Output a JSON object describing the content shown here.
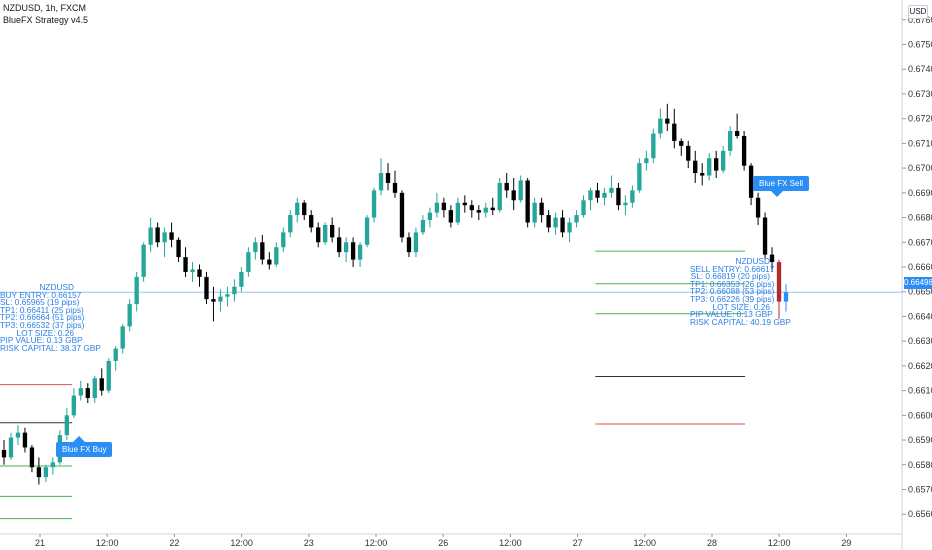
{
  "header": {
    "symbol_line": "NZDUSD, 1h, FXCM",
    "indicator_line": "BlueFX Strategy v4.5"
  },
  "currency_button": "USD",
  "current_price": "0.66498",
  "buy_signal": {
    "tag_label": "Blue FX Buy",
    "lines": [
      "NZDUSD",
      "BUY ENTRY: 0.66157",
      "SL: 0.65965 (19 pips)",
      "TP1: 0.66411 (25 pips)",
      "TP2: 0.66664 (51 pips)",
      "TP3: 0.66532 (37 pips)",
      "LOT SIZE: 0.26",
      "PIP VALUE: 0.13 GBP",
      "RISK CAPITAL: 38.37 GBP"
    ]
  },
  "sell_signal": {
    "tag_label": "Blue FX Sell",
    "lines": [
      "NZDUSD",
      "SELL ENTRY: 0.66617",
      "SL: 0.66819 (20 pips)",
      "TP1: 0.66353 (26 pips)",
      "TP2: 0.66088 (53 pips)",
      "TP3: 0.66226 (39 pips)",
      "LOT SIZE: 0.26",
      "PIP VALUE: 0.13 GBP",
      "RISK CAPITAL: 40.19 GBP"
    ]
  },
  "colors": {
    "up": "#26a69a",
    "down": "#000000",
    "last_bar": "#b2292e",
    "accent": "#2b8ef5",
    "tp_line": "#4caf50",
    "sl_line": "#e84b4b",
    "entry_line": "#333333"
  },
  "chart_data": {
    "type": "candlestick",
    "symbol": "NZDUSD",
    "timeframe": "1h",
    "y_ticks": [
      "0.67600",
      "0.67500",
      "0.67400",
      "0.67300",
      "0.67200",
      "0.67100",
      "0.67000",
      "0.66900",
      "0.66800",
      "0.66700",
      "0.66600",
      "0.66500",
      "0.66400",
      "0.66300",
      "0.66200",
      "0.66100",
      "0.66000",
      "0.65900",
      "0.65800",
      "0.65700",
      "0.65600"
    ],
    "x_ticks": [
      "21",
      "12:00",
      "22",
      "12:00",
      "23",
      "12:00",
      "26",
      "12:00",
      "27",
      "12:00",
      "28",
      "12:00",
      "29"
    ],
    "ylim": [
      0.6552,
      0.6768
    ],
    "level_lines": [
      {
        "price": 0.66664,
        "color": "#4caf50",
        "x_from": 0.66,
        "x_to": 0.826
      },
      {
        "price": 0.66532,
        "color": "#4caf50",
        "x_from": 0.66,
        "x_to": 0.826
      },
      {
        "price": 0.66411,
        "color": "#4caf50",
        "x_from": 0.66,
        "x_to": 0.826
      },
      {
        "price": 0.66157,
        "color": "#333333",
        "x_from": 0.66,
        "x_to": 0.826
      },
      {
        "price": 0.66124,
        "color": "#e84b4b",
        "x_from": 0.0,
        "x_to": 0.08
      },
      {
        "price": 0.65965,
        "color": "#e84b4b",
        "x_from": 0.66,
        "x_to": 0.826
      },
      {
        "price": 0.6597,
        "color": "#333333",
        "x_from": 0.0,
        "x_to": 0.08
      },
      {
        "price": 0.65795,
        "color": "#4caf50",
        "x_from": 0.0,
        "x_to": 0.08
      },
      {
        "price": 0.65672,
        "color": "#4caf50",
        "x_from": 0.0,
        "x_to": 0.08
      },
      {
        "price": 0.65582,
        "color": "#4caf50",
        "x_from": 0.0,
        "x_to": 0.08
      },
      {
        "price": 0.66498,
        "color": "#9ec5f5",
        "x_from": 0.0,
        "x_to": 1.0
      }
    ],
    "candles": [
      [
        0.6586,
        0.659,
        0.658,
        0.6583
      ],
      [
        0.6583,
        0.6593,
        0.6582,
        0.6591
      ],
      [
        0.6591,
        0.6596,
        0.6588,
        0.6593
      ],
      [
        0.6593,
        0.6595,
        0.6585,
        0.6587
      ],
      [
        0.6587,
        0.6588,
        0.6577,
        0.6579
      ],
      [
        0.6579,
        0.6583,
        0.6572,
        0.6575
      ],
      [
        0.6575,
        0.658,
        0.6573,
        0.6579
      ],
      [
        0.6579,
        0.6583,
        0.6576,
        0.6581
      ],
      [
        0.6581,
        0.6594,
        0.658,
        0.6592
      ],
      [
        0.6592,
        0.6603,
        0.659,
        0.66
      ],
      [
        0.66,
        0.6611,
        0.6599,
        0.6608
      ],
      [
        0.6608,
        0.6614,
        0.6606,
        0.6611
      ],
      [
        0.6611,
        0.6613,
        0.6605,
        0.6607
      ],
      [
        0.6607,
        0.6616,
        0.6605,
        0.6615
      ],
      [
        0.6615,
        0.6619,
        0.6608,
        0.661
      ],
      [
        0.661,
        0.6623,
        0.6609,
        0.6622
      ],
      [
        0.6622,
        0.6628,
        0.6618,
        0.6627
      ],
      [
        0.6627,
        0.6637,
        0.6625,
        0.6636
      ],
      [
        0.6636,
        0.6647,
        0.6634,
        0.6645
      ],
      [
        0.6645,
        0.6658,
        0.6642,
        0.6656
      ],
      [
        0.6656,
        0.667,
        0.6654,
        0.6669
      ],
      [
        0.6669,
        0.668,
        0.6666,
        0.6676
      ],
      [
        0.6676,
        0.6678,
        0.6668,
        0.667
      ],
      [
        0.667,
        0.6676,
        0.6664,
        0.6674
      ],
      [
        0.6674,
        0.6678,
        0.6668,
        0.6671
      ],
      [
        0.6671,
        0.6672,
        0.6662,
        0.6664
      ],
      [
        0.6664,
        0.6668,
        0.6656,
        0.6658
      ],
      [
        0.6658,
        0.6662,
        0.6654,
        0.6659
      ],
      [
        0.6659,
        0.6661,
        0.6652,
        0.6656
      ],
      [
        0.6656,
        0.6658,
        0.6645,
        0.6647
      ],
      [
        0.6647,
        0.6652,
        0.6638,
        0.6646
      ],
      [
        0.6646,
        0.6651,
        0.6642,
        0.6648
      ],
      [
        0.6648,
        0.6652,
        0.6644,
        0.6649
      ],
      [
        0.6649,
        0.6655,
        0.6646,
        0.6652
      ],
      [
        0.6652,
        0.666,
        0.665,
        0.6658
      ],
      [
        0.6658,
        0.6668,
        0.6656,
        0.6666
      ],
      [
        0.6666,
        0.6672,
        0.6663,
        0.667
      ],
      [
        0.667,
        0.6673,
        0.6661,
        0.6663
      ],
      [
        0.6663,
        0.6666,
        0.6659,
        0.6661
      ],
      [
        0.6661,
        0.667,
        0.666,
        0.6668
      ],
      [
        0.6668,
        0.6676,
        0.6666,
        0.6674
      ],
      [
        0.6674,
        0.6683,
        0.6672,
        0.6681
      ],
      [
        0.6681,
        0.6688,
        0.6678,
        0.6686
      ],
      [
        0.6686,
        0.6687,
        0.6679,
        0.6681
      ],
      [
        0.6681,
        0.6683,
        0.6674,
        0.6676
      ],
      [
        0.6676,
        0.6678,
        0.6668,
        0.667
      ],
      [
        0.667,
        0.6678,
        0.6669,
        0.6677
      ],
      [
        0.6677,
        0.668,
        0.667,
        0.6672
      ],
      [
        0.6672,
        0.6676,
        0.6664,
        0.6666
      ],
      [
        0.6666,
        0.6672,
        0.6662,
        0.667
      ],
      [
        0.667,
        0.6672,
        0.666,
        0.6663
      ],
      [
        0.6663,
        0.667,
        0.666,
        0.6669
      ],
      [
        0.6669,
        0.6681,
        0.6668,
        0.668
      ],
      [
        0.668,
        0.6692,
        0.6678,
        0.6691
      ],
      [
        0.6691,
        0.6704,
        0.6689,
        0.6698
      ],
      [
        0.6698,
        0.6702,
        0.6691,
        0.6694
      ],
      [
        0.6694,
        0.6699,
        0.6688,
        0.669
      ],
      [
        0.669,
        0.6691,
        0.667,
        0.6672
      ],
      [
        0.6672,
        0.6674,
        0.6664,
        0.6666
      ],
      [
        0.6666,
        0.6676,
        0.6664,
        0.6674
      ],
      [
        0.6674,
        0.6681,
        0.6673,
        0.6679
      ],
      [
        0.6679,
        0.6684,
        0.6676,
        0.6682
      ],
      [
        0.6682,
        0.669,
        0.668,
        0.6686
      ],
      [
        0.6686,
        0.6688,
        0.668,
        0.6683
      ],
      [
        0.6683,
        0.6685,
        0.6676,
        0.6678
      ],
      [
        0.6678,
        0.6688,
        0.6677,
        0.6686
      ],
      [
        0.6686,
        0.6689,
        0.6682,
        0.6685
      ],
      [
        0.6685,
        0.6687,
        0.668,
        0.6683
      ],
      [
        0.6683,
        0.6685,
        0.6679,
        0.6682
      ],
      [
        0.6682,
        0.6686,
        0.668,
        0.6684
      ],
      [
        0.6684,
        0.6688,
        0.6681,
        0.6683
      ],
      [
        0.6683,
        0.6696,
        0.6682,
        0.6694
      ],
      [
        0.6694,
        0.6698,
        0.6688,
        0.6691
      ],
      [
        0.6691,
        0.6696,
        0.6683,
        0.6687
      ],
      [
        0.6687,
        0.6697,
        0.6686,
        0.6695
      ],
      [
        0.6695,
        0.6696,
        0.6676,
        0.6678
      ],
      [
        0.6678,
        0.6688,
        0.6676,
        0.6686
      ],
      [
        0.6686,
        0.6688,
        0.6678,
        0.6681
      ],
      [
        0.6681,
        0.6683,
        0.6674,
        0.6676
      ],
      [
        0.6676,
        0.6682,
        0.6673,
        0.668
      ],
      [
        0.668,
        0.6683,
        0.6672,
        0.6674
      ],
      [
        0.6674,
        0.668,
        0.667,
        0.6678
      ],
      [
        0.6678,
        0.6683,
        0.6676,
        0.6681
      ],
      [
        0.6681,
        0.6689,
        0.668,
        0.6687
      ],
      [
        0.6687,
        0.6692,
        0.6683,
        0.6691
      ],
      [
        0.6691,
        0.6694,
        0.6686,
        0.6688
      ],
      [
        0.6688,
        0.6692,
        0.6685,
        0.669
      ],
      [
        0.669,
        0.6697,
        0.6688,
        0.6692
      ],
      [
        0.6692,
        0.6694,
        0.6683,
        0.6685
      ],
      [
        0.6685,
        0.6689,
        0.6681,
        0.6686
      ],
      [
        0.6686,
        0.6693,
        0.6684,
        0.6691
      ],
      [
        0.6691,
        0.6704,
        0.669,
        0.6702
      ],
      [
        0.6702,
        0.6707,
        0.6699,
        0.6704
      ],
      [
        0.6704,
        0.6716,
        0.6702,
        0.6714
      ],
      [
        0.6714,
        0.6724,
        0.6712,
        0.672
      ],
      [
        0.672,
        0.6726,
        0.6715,
        0.6718
      ],
      [
        0.6718,
        0.6724,
        0.6708,
        0.6711
      ],
      [
        0.6711,
        0.6712,
        0.6705,
        0.6709
      ],
      [
        0.6709,
        0.6711,
        0.67,
        0.6703
      ],
      [
        0.6703,
        0.6707,
        0.6694,
        0.6698
      ],
      [
        0.6698,
        0.6702,
        0.6693,
        0.6697
      ],
      [
        0.6697,
        0.6706,
        0.6695,
        0.6704
      ],
      [
        0.6704,
        0.6707,
        0.6696,
        0.6699
      ],
      [
        0.6699,
        0.6709,
        0.6698,
        0.6707
      ],
      [
        0.6707,
        0.6717,
        0.6705,
        0.6715
      ],
      [
        0.6715,
        0.6722,
        0.6712,
        0.6713
      ],
      [
        0.6713,
        0.6715,
        0.6699,
        0.6701
      ],
      [
        0.6701,
        0.6702,
        0.6685,
        0.6688
      ],
      [
        0.6688,
        0.669,
        0.6677,
        0.668
      ],
      [
        0.668,
        0.6682,
        0.6663,
        0.6665
      ],
      [
        0.6665,
        0.6668,
        0.6658,
        0.6662
      ],
      [
        0.6662,
        0.6663,
        0.6639,
        0.6646
      ],
      [
        0.6646,
        0.6653,
        0.6642,
        0.66498
      ]
    ]
  }
}
